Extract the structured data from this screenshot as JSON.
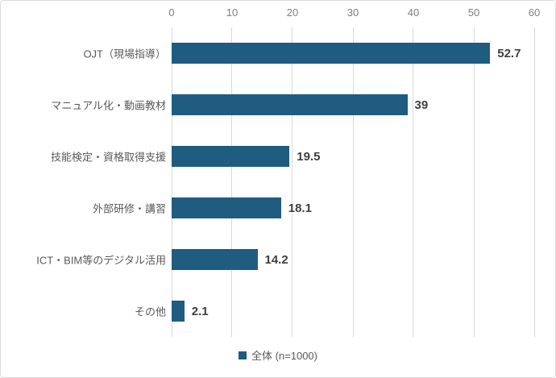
{
  "chart_data": {
    "type": "bar",
    "orientation": "horizontal",
    "categories": [
      "OJT（現場指導）",
      "マニュアル化・動画教材",
      "技能検定・資格取得支援",
      "外部研修・講習",
      "ICT・BIM等のデジタル活用",
      "その他"
    ],
    "values": [
      52.7,
      39,
      19.5,
      18.1,
      14.2,
      2.1
    ],
    "value_labels": [
      "52.7",
      "39",
      "19.5",
      "18.1",
      "14.2",
      "2.1"
    ],
    "title": "",
    "xlabel": "",
    "ylabel": "",
    "xlim": [
      0,
      60
    ],
    "x_ticks": [
      0,
      10,
      20,
      30,
      40,
      50,
      60
    ],
    "axis_position": "top",
    "grid": true,
    "legend_position": "bottom",
    "series": [
      {
        "name": "全体 (n=1000)",
        "values": [
          52.7,
          39,
          19.5,
          18.1,
          14.2,
          2.1
        ]
      }
    ]
  },
  "legend": {
    "label": "全体 (n=1000)"
  },
  "colors": {
    "bar": "#1f5c7f",
    "gridline": "#d9d9d9",
    "axis_label": "#7f7f7f",
    "category_label": "#595959",
    "value_label": "#3f3f3f",
    "border": "#dcdcdc"
  }
}
